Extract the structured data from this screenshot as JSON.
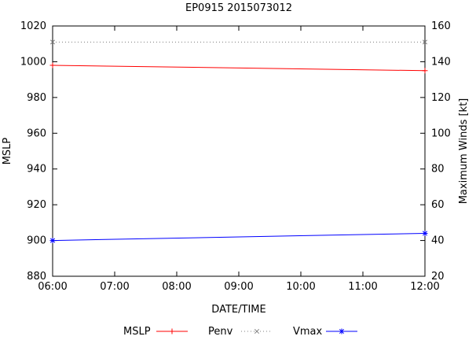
{
  "title": "EP0915 2015073012",
  "chart_data": {
    "type": "line",
    "title": "EP0915 2015073012",
    "xlabel": "DATE/TIME",
    "ylabel_left": "MSLP",
    "ylabel_right": "Maximum Winds [kt]",
    "x_ticks": [
      "06:00",
      "07:00",
      "08:00",
      "09:00",
      "10:00",
      "11:00",
      "12:00"
    ],
    "x_range_hours": [
      6,
      12
    ],
    "y_left_ticks": [
      880,
      900,
      920,
      940,
      960,
      980,
      1000,
      1020
    ],
    "y_left_range": [
      880,
      1020
    ],
    "y_right_ticks": [
      20,
      40,
      60,
      80,
      100,
      120,
      140,
      160
    ],
    "y_right_range": [
      20,
      160
    ],
    "grid": false,
    "legend_position": "bottom",
    "series": [
      {
        "name": "MSLP",
        "axis": "left",
        "color": "#ff0000",
        "style": "solid",
        "marker": "plus",
        "x": [
          6,
          12
        ],
        "values": [
          998,
          995
        ]
      },
      {
        "name": "Penv",
        "axis": "left",
        "color": "#808080",
        "style": "dotted",
        "marker": "x",
        "x": [
          6,
          12
        ],
        "values": [
          1011,
          1011
        ]
      },
      {
        "name": "Vmax",
        "axis": "right",
        "color": "#0000ff",
        "style": "solid",
        "marker": "asterisk",
        "x": [
          6,
          12
        ],
        "values": [
          40,
          44
        ]
      }
    ]
  }
}
